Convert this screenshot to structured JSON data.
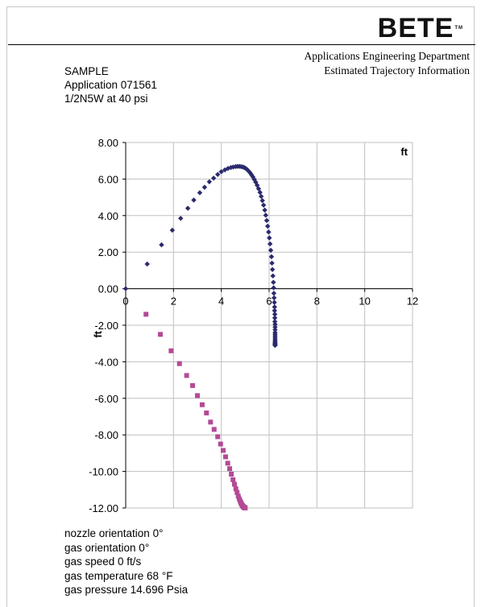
{
  "header": {
    "logo_text": "BETE",
    "department": "Applications Engineering Department",
    "subtitle": "Estimated Trajectory Information"
  },
  "info": {
    "line1": "SAMPLE",
    "line2": "Application 071561",
    "line3": "1/2N5W at  40 psi"
  },
  "conditions": {
    "nozzle_orientation": "nozzle orientation  0°",
    "gas_orientation": "gas orientation   0°",
    "gas_speed": "gas speed  0 ft/s",
    "gas_temperature": "gas temperature  68 °F",
    "gas_pressure": "gas pressure  14.696 Psia"
  },
  "chart_data": {
    "type": "scatter",
    "xlabel": "ft",
    "ylabel": "ft",
    "xlim": [
      0,
      12
    ],
    "ylim": [
      -12,
      8
    ],
    "x_ticks": [
      "0",
      "2",
      "4",
      "6",
      "8",
      "10",
      "12"
    ],
    "y_ticks": [
      "8.00",
      "6.00",
      "4.00",
      "2.00",
      "0.00",
      "-2.00",
      "-4.00",
      "-6.00",
      "-8.00",
      "-10.00",
      "-12.00"
    ],
    "grid": true,
    "colors": {
      "upper": "#2b2a6e",
      "lower": "#b34a96",
      "grid": "#c0c0c0"
    },
    "series": [
      {
        "marker": "diamond",
        "x": [
          0,
          0.9,
          1.5,
          1.95,
          2.3,
          2.6,
          2.85,
          3.1,
          3.3,
          3.5,
          3.68,
          3.85,
          4.0,
          4.15,
          4.28,
          4.4,
          4.5,
          4.6,
          4.68,
          4.76,
          4.83,
          4.9,
          4.96,
          5.02,
          5.08,
          5.14,
          5.2,
          5.26,
          5.32,
          5.38,
          5.44,
          5.5,
          5.56,
          5.62,
          5.67,
          5.72,
          5.77,
          5.82,
          5.86,
          5.9,
          5.94,
          5.98,
          6.01,
          6.04,
          6.07,
          6.1,
          6.12,
          6.14,
          6.16,
          6.18,
          6.19,
          6.2,
          6.21,
          6.22,
          6.23,
          6.23,
          6.24,
          6.24,
          6.24,
          6.25,
          6.25,
          6.25,
          6.25,
          6.25,
          6.25,
          6.25,
          6.25,
          6.25,
          6.25,
          6.25,
          6.25,
          6.25,
          6.25,
          6.25
        ],
        "y": [
          0,
          1.35,
          2.4,
          3.2,
          3.85,
          4.4,
          4.85,
          5.25,
          5.55,
          5.85,
          6.05,
          6.25,
          6.4,
          6.5,
          6.58,
          6.63,
          6.66,
          6.68,
          6.69,
          6.69,
          6.68,
          6.66,
          6.63,
          6.58,
          6.52,
          6.44,
          6.35,
          6.24,
          6.12,
          5.98,
          5.83,
          5.66,
          5.47,
          5.27,
          5.05,
          4.82,
          4.57,
          4.3,
          4.02,
          3.73,
          3.42,
          3.1,
          2.78,
          2.45,
          2.1,
          1.75,
          1.4,
          1.05,
          0.7,
          0.35,
          0.05,
          -0.25,
          -0.5,
          -0.75,
          -1.0,
          -1.2,
          -1.4,
          -1.6,
          -1.8,
          -1.95,
          -2.1,
          -2.25,
          -2.4,
          -2.5,
          -2.6,
          -2.7,
          -2.8,
          -2.88,
          -2.95,
          -3.0,
          -3.05,
          -3.08,
          -3.1,
          -3.1
        ]
      },
      {
        "marker": "square",
        "x": [
          0.85,
          1.45,
          1.9,
          2.25,
          2.55,
          2.8,
          3.0,
          3.2,
          3.38,
          3.55,
          3.7,
          3.85,
          3.97,
          4.08,
          4.18,
          4.27,
          4.35,
          4.42,
          4.49,
          4.55,
          4.61,
          4.66,
          4.71,
          4.75,
          4.79,
          4.82,
          4.85,
          4.88,
          4.9,
          4.92,
          4.94,
          4.96,
          4.97,
          4.98,
          4.99,
          5.0
        ],
        "y": [
          -1.4,
          -2.5,
          -3.4,
          -4.1,
          -4.75,
          -5.3,
          -5.85,
          -6.35,
          -6.8,
          -7.3,
          -7.7,
          -8.1,
          -8.5,
          -8.85,
          -9.2,
          -9.55,
          -9.85,
          -10.15,
          -10.45,
          -10.7,
          -10.95,
          -11.15,
          -11.35,
          -11.5,
          -11.62,
          -11.72,
          -11.8,
          -11.86,
          -11.9,
          -11.93,
          -11.95,
          -11.97,
          -11.98,
          -11.99,
          -12.0,
          -12.0
        ]
      }
    ]
  }
}
